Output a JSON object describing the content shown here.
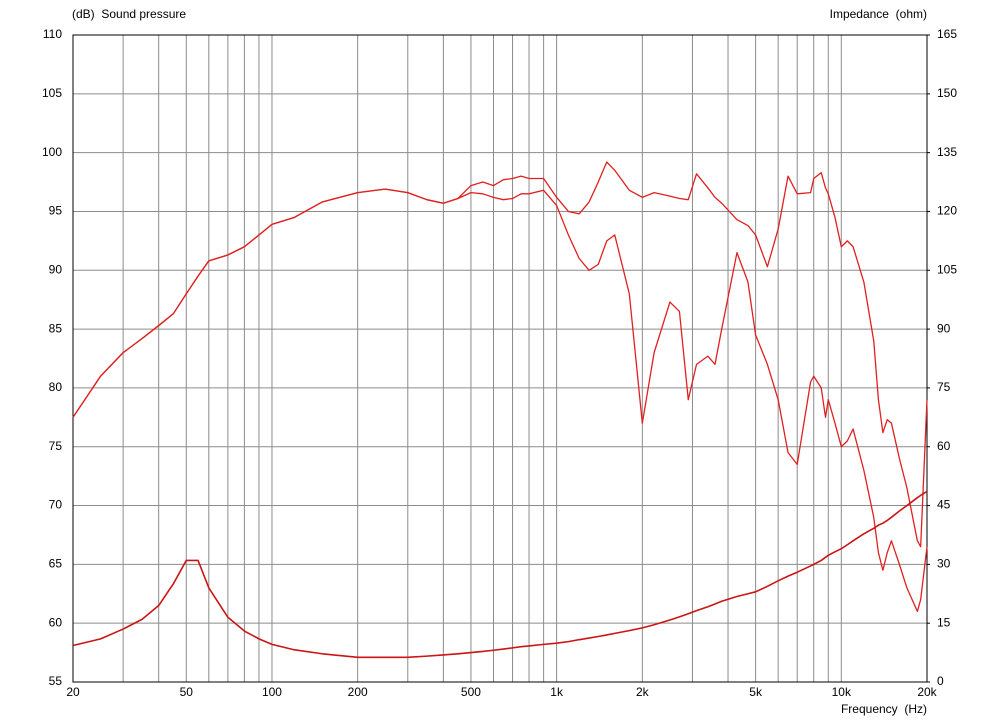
{
  "chart_data": {
    "type": "line",
    "xlabel": "Frequency  (Hz)",
    "ylabel": "(dB)  Sound pressure",
    "y2label": "Impedance  (ohm)",
    "xscale": "log",
    "grid": true,
    "xlim": [
      20,
      20000
    ],
    "ylim": [
      55,
      110
    ],
    "y2lim": [
      0,
      165
    ],
    "xticks": [
      20,
      50,
      100,
      200,
      500,
      {
        "value": 1000,
        "label": "1k"
      },
      {
        "value": 2000,
        "label": "2k"
      },
      {
        "value": 5000,
        "label": "5k"
      },
      {
        "value": 10000,
        "label": "10k"
      },
      {
        "value": 20000,
        "label": "20k"
      }
    ],
    "xgrid_minor": [
      30,
      40,
      60,
      70,
      80,
      90,
      300,
      400,
      600,
      700,
      800,
      900,
      3000,
      4000,
      6000,
      7000,
      8000,
      9000
    ],
    "yticks": [
      55,
      60,
      65,
      70,
      75,
      80,
      85,
      90,
      95,
      100,
      105,
      110
    ],
    "y2ticks": [
      0,
      15,
      30,
      45,
      60,
      75,
      90,
      105,
      120,
      135,
      150,
      165
    ],
    "x": [
      20,
      25,
      30,
      35,
      40,
      45,
      50,
      55,
      60,
      70,
      80,
      90,
      100,
      120,
      150,
      200,
      250,
      300,
      350,
      400,
      450,
      500,
      550,
      600,
      650,
      700,
      750,
      800,
      900,
      1000,
      1100,
      1200,
      1300,
      1400,
      1500,
      1600,
      1800,
      2000,
      2200,
      2500,
      2700,
      2900,
      3100,
      3400,
      3600,
      3800,
      4300,
      4700,
      5000,
      5500,
      6000,
      6500,
      7000,
      7800,
      8000,
      8500,
      8800,
      9000,
      9500,
      10000,
      10500,
      11000,
      12000,
      13000,
      13500,
      14000,
      14500,
      15000,
      16000,
      17000,
      18500,
      19000,
      20000
    ],
    "series": [
      {
        "color": "#e02020",
        "values": [
          77.5,
          81,
          83,
          84.2,
          85.3,
          86.3,
          88,
          89.5,
          90.8,
          91.3,
          92,
          93,
          93.9,
          94.5,
          95.8,
          96.6,
          96.9,
          96.6,
          96,
          95.7,
          96.1,
          97.2,
          97.5,
          97.2,
          97.7,
          97.8,
          98,
          97.8,
          97.8,
          96.2,
          95,
          94.8,
          95.8,
          97.5,
          99.2,
          98.5,
          96.8,
          96.2,
          96.6,
          96.3,
          96.1,
          96,
          98.2,
          97,
          96.2,
          95.7,
          94.3,
          93.8,
          93,
          90.3,
          93.5,
          98,
          96.5,
          96.6,
          97.8,
          98.3,
          97,
          96.5,
          94.5,
          92,
          92.5,
          92,
          89,
          84,
          79,
          76.2,
          77.3,
          77,
          74,
          71.5,
          67,
          66.5,
          79
        ]
      },
      {
        "color": "#e02020",
        "values": [
          77.5,
          81,
          83,
          84.2,
          85.3,
          86.3,
          88,
          89.5,
          90.8,
          91.3,
          92,
          93,
          93.9,
          94.5,
          95.8,
          96.6,
          96.9,
          96.6,
          96,
          95.7,
          96.1,
          96.6,
          96.5,
          96.2,
          96,
          96.1,
          96.5,
          96.5,
          96.8,
          95.5,
          93,
          91,
          90,
          90.5,
          92.5,
          93,
          88,
          77,
          83,
          87.3,
          86.5,
          79,
          82,
          82.7,
          82,
          85,
          91.5,
          89,
          84.5,
          82,
          79,
          74.5,
          73.5,
          80.5,
          81,
          80,
          77.5,
          79,
          77,
          75,
          75.5,
          76.5,
          73,
          69,
          66,
          64.5,
          66,
          67,
          65,
          63,
          61,
          62,
          66.5
        ]
      },
      {
        "color": "#cc1414",
        "axis": "y2",
        "values": [
          9.3,
          11,
          13.5,
          16,
          19.5,
          25,
          31,
          31,
          24,
          16.5,
          13,
          11,
          9.6,
          8.2,
          7.2,
          6.3,
          6.3,
          6.3,
          6.6,
          6.9,
          7.2,
          7.5,
          7.8,
          8.1,
          8.4,
          8.7,
          9,
          9.2,
          9.6,
          9.9,
          10.3,
          10.8,
          11.2,
          11.6,
          12,
          12.4,
          13.1,
          13.8,
          14.6,
          15.8,
          16.6,
          17.4,
          18.2,
          19.2,
          19.9,
          20.6,
          21.8,
          22.5,
          23,
          24.4,
          25.8,
          27,
          28,
          29.6,
          30,
          31,
          31.8,
          32.3,
          33.2,
          34,
          35,
          36,
          37.8,
          39.2,
          40,
          40.5,
          41.2,
          42,
          43.6,
          45,
          47,
          47.6,
          48.6
        ]
      }
    ]
  }
}
